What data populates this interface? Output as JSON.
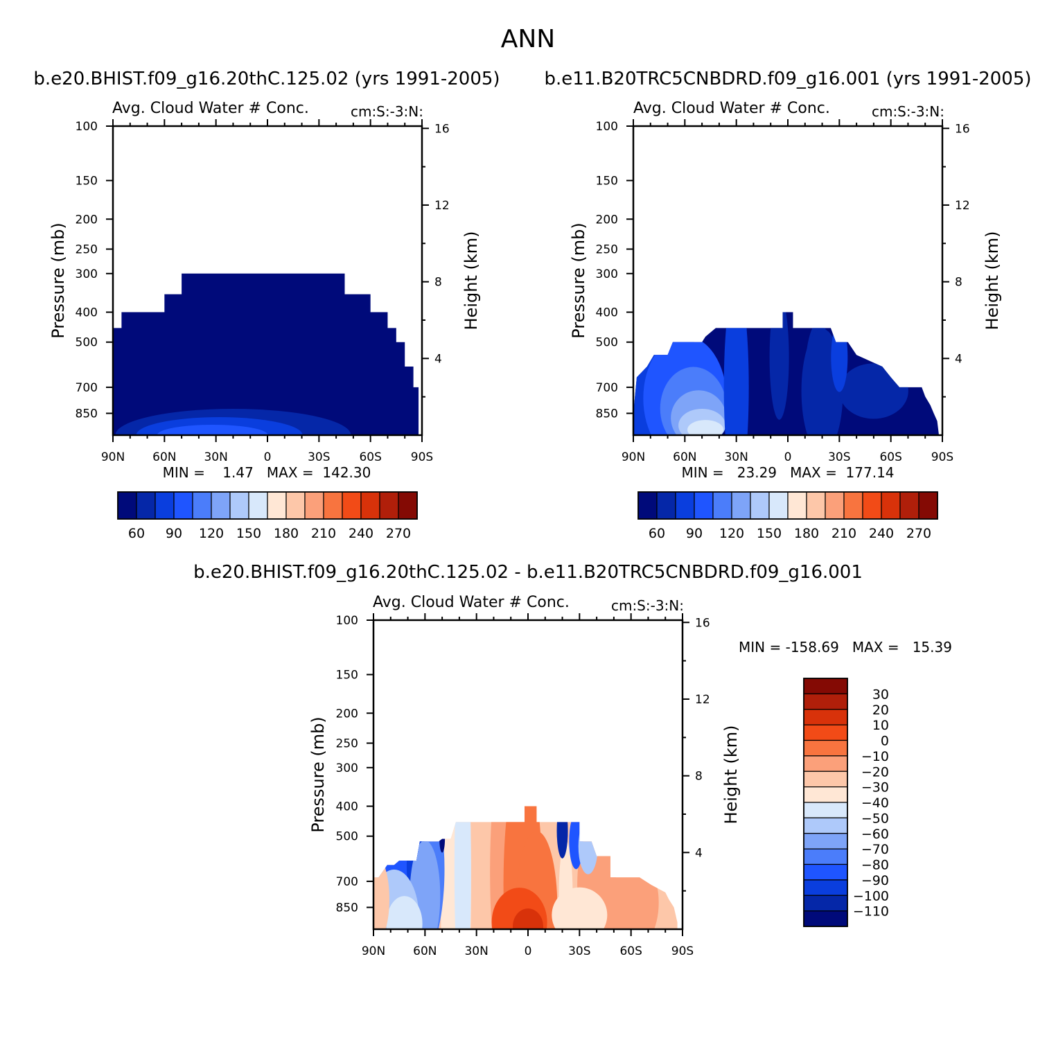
{
  "figure_title": "ANN",
  "chart_data": [
    {
      "type": "heatmap",
      "case_title": "b.e20.BHIST.f09_g16.20thC.125.02 (yrs 1991-2005)",
      "subtitle_left": "Avg. Cloud Water # Conc.",
      "subtitle_right": "cm:S:-3:N:",
      "ylabel": "Pressure (mb)",
      "ylabel_right": "Height (km)",
      "xticks": [
        "90N",
        "60N",
        "30N",
        "0",
        "30S",
        "60S",
        "90S"
      ],
      "yticks": [
        "100",
        "150",
        "200",
        "250",
        "300",
        "400",
        "500",
        "700",
        "850"
      ],
      "yticks_right": [
        "16",
        "12",
        "8",
        "4"
      ],
      "stats": "MIN =    1.47   MAX =  142.30",
      "min": 1.47,
      "max": 142.3,
      "colorbar_labels": [
        "60",
        "90",
        "120",
        "150",
        "180",
        "210",
        "240",
        "270"
      ],
      "levels": [
        45,
        60,
        75,
        90,
        105,
        120,
        135,
        150,
        165,
        180,
        195,
        210,
        225,
        240,
        255,
        270
      ],
      "cloud_top_pressure_mb": {
        "latitudes": [
          "90N",
          "85N",
          "80N",
          "60N",
          "50N",
          "0",
          "45S",
          "60S",
          "70S",
          "75S",
          "80S",
          "85S",
          "88S"
        ],
        "pressure": [
          450,
          400,
          400,
          350,
          300,
          300,
          350,
          400,
          450,
          500,
          600,
          700,
          850
        ]
      }
    },
    {
      "type": "heatmap",
      "case_title": "b.e11.B20TRC5CNBDRD.f09_g16.001 (yrs 1991-2005)",
      "subtitle_left": "Avg. Cloud Water # Conc.",
      "subtitle_right": "cm:S:-3:N:",
      "ylabel": "Pressure (mb)",
      "ylabel_right": "Height (km)",
      "xticks": [
        "90N",
        "60N",
        "30N",
        "0",
        "30S",
        "60S",
        "90S"
      ],
      "yticks": [
        "100",
        "150",
        "200",
        "250",
        "300",
        "400",
        "500",
        "700",
        "850"
      ],
      "yticks_right": [
        "16",
        "12",
        "8",
        "4"
      ],
      "stats": "MIN =   23.29   MAX =  177.14",
      "min": 23.29,
      "max": 177.14,
      "colorbar_labels": [
        "60",
        "90",
        "120",
        "150",
        "180",
        "210",
        "240",
        "270"
      ],
      "levels": [
        45,
        60,
        75,
        90,
        105,
        120,
        135,
        150,
        165,
        180,
        195,
        210,
        225,
        240,
        255,
        270
      ]
    },
    {
      "type": "heatmap",
      "case_title": "b.e20.BHIST.f09_g16.20thC.125.02 - b.e11.B20TRC5CNBDRD.f09_g16.001",
      "subtitle_left": "Avg. Cloud Water # Conc.",
      "subtitle_right": "cm:S:-3:N:",
      "ylabel": "Pressure (mb)",
      "ylabel_right": "Height (km)",
      "xticks": [
        "90N",
        "60N",
        "30N",
        "0",
        "30S",
        "60S",
        "90S"
      ],
      "yticks": [
        "100",
        "150",
        "200",
        "250",
        "300",
        "400",
        "500",
        "700",
        "850"
      ],
      "yticks_right": [
        "16",
        "12",
        "8",
        "4"
      ],
      "stats": "MIN = -158.69   MAX =   15.39",
      "min": -158.69,
      "max": 15.39,
      "colorbar_labels": [
        "30",
        "20",
        "10",
        "0",
        "-10",
        "-20",
        "-30",
        "-40",
        "-50",
        "-60",
        "-70",
        "-80",
        "-90",
        "-100",
        "-110"
      ],
      "levels": [
        -110,
        -100,
        -90,
        -80,
        -70,
        -60,
        -50,
        -40,
        -30,
        -20,
        -10,
        0,
        10,
        20,
        30
      ]
    }
  ],
  "colors": {
    "main_palette": [
      "#000a7a",
      "#0527a8",
      "#0a3ede",
      "#1f55ff",
      "#4b7dfa",
      "#7ea4f8",
      "#aec9fa",
      "#d8e8fb",
      "#ffe7d5",
      "#fdc7a9",
      "#fba07a",
      "#f8743f",
      "#f24b17",
      "#d8320a",
      "#b01f0a",
      "#840a04"
    ],
    "diff_palette": [
      "#000a7a",
      "#0527a8",
      "#0a3ede",
      "#1f55ff",
      "#4b7dfa",
      "#7ea4f8",
      "#aec9fa",
      "#d8e8fb",
      "#ffe7d5",
      "#fdc7a9",
      "#fba07a",
      "#f8743f",
      "#f24b17",
      "#d8320a",
      "#b01f0a",
      "#840a04"
    ]
  }
}
